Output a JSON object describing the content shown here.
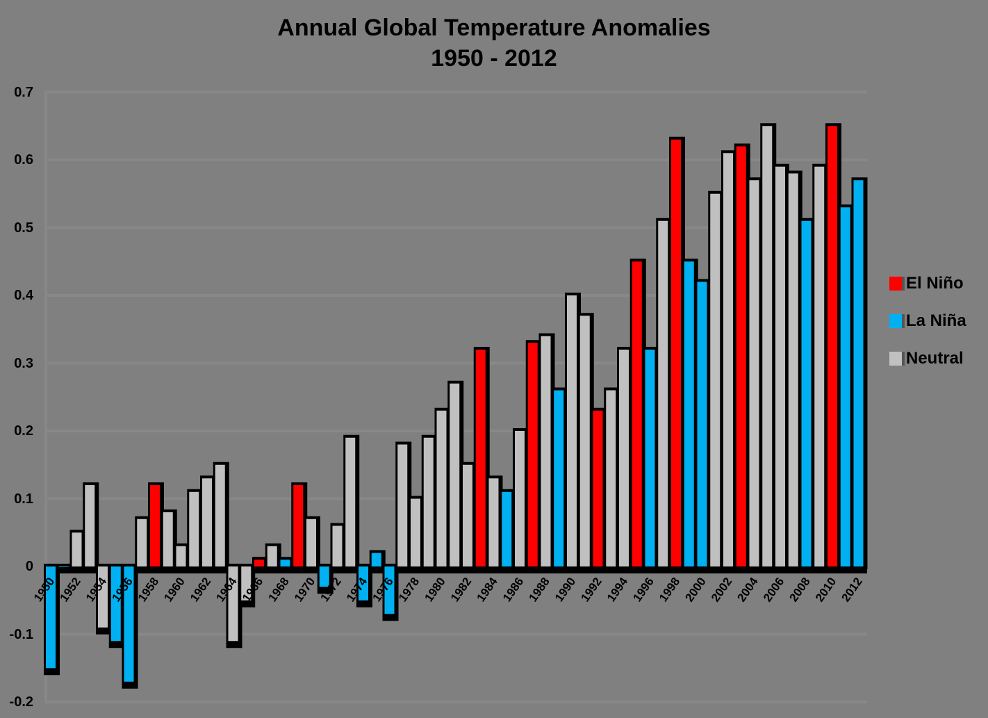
{
  "chart_data": {
    "type": "bar",
    "title": "Annual Global Temperature Anomalies",
    "subtitle": "1950 - 2012",
    "xlabel": "",
    "ylabel": "",
    "ylim": [
      -0.2,
      0.7
    ],
    "yticks": [
      "0.7",
      "0.6",
      "0.5",
      "0.4",
      "0.3",
      "0.2",
      "0.1",
      "0",
      "-0.1",
      "-0.2"
    ],
    "grid": true,
    "legend_position": "right",
    "legend": [
      {
        "name": "El Niño",
        "color": "#FF0000",
        "key": "elnino"
      },
      {
        "name": "La Niña",
        "color": "#00B0F0",
        "key": "lanina"
      },
      {
        "name": "Neutral",
        "color": "#C0C0C0",
        "key": "neutral"
      }
    ],
    "categories": [
      "1950",
      "1951",
      "1952",
      "1953",
      "1954",
      "1955",
      "1956",
      "1957",
      "1958",
      "1959",
      "1960",
      "1961",
      "1962",
      "1963",
      "1964",
      "1965",
      "1966",
      "1967",
      "1968",
      "1969",
      "1970",
      "1971",
      "1972",
      "1973",
      "1974",
      "1975",
      "1976",
      "1977",
      "1978",
      "1979",
      "1980",
      "1981",
      "1982",
      "1983",
      "1984",
      "1985",
      "1986",
      "1987",
      "1988",
      "1989",
      "1990",
      "1991",
      "1992",
      "1993",
      "1994",
      "1995",
      "1996",
      "1997",
      "1998",
      "1999",
      "2000",
      "2001",
      "2002",
      "2003",
      "2004",
      "2005",
      "2006",
      "2007",
      "2008",
      "2009",
      "2010",
      "2011",
      "2012"
    ],
    "values": [
      -0.15,
      0.0,
      0.05,
      0.12,
      -0.09,
      -0.11,
      -0.17,
      0.07,
      0.12,
      0.08,
      0.03,
      0.11,
      0.13,
      0.15,
      -0.11,
      -0.05,
      0.01,
      0.03,
      0.01,
      0.12,
      0.07,
      -0.03,
      0.06,
      0.19,
      -0.05,
      0.02,
      -0.07,
      0.18,
      0.1,
      0.19,
      0.23,
      0.27,
      0.15,
      0.32,
      0.13,
      0.11,
      0.2,
      0.33,
      0.34,
      0.26,
      0.4,
      0.37,
      0.23,
      0.26,
      0.32,
      0.45,
      0.32,
      0.51,
      0.63,
      0.45,
      0.42,
      0.55,
      0.61,
      0.62,
      0.57,
      0.65,
      0.59,
      0.58,
      0.51,
      0.59,
      0.65,
      0.53,
      0.57
    ],
    "phase": [
      "lanina",
      "lanina",
      "neutral",
      "neutral",
      "neutral",
      "lanina",
      "lanina",
      "neutral",
      "elnino",
      "neutral",
      "neutral",
      "neutral",
      "neutral",
      "neutral",
      "neutral",
      "neutral",
      "elnino",
      "neutral",
      "lanina",
      "elnino",
      "neutral",
      "lanina",
      "neutral",
      "neutral",
      "lanina",
      "lanina",
      "lanina",
      "neutral",
      "neutral",
      "neutral",
      "neutral",
      "neutral",
      "neutral",
      "elnino",
      "neutral",
      "lanina",
      "neutral",
      "elnino",
      "neutral",
      "lanina",
      "neutral",
      "neutral",
      "elnino",
      "neutral",
      "neutral",
      "elnino",
      "lanina",
      "neutral",
      "elnino",
      "lanina",
      "lanina",
      "neutral",
      "neutral",
      "elnino",
      "neutral",
      "neutral",
      "neutral",
      "neutral",
      "lanina",
      "neutral",
      "elnino",
      "lanina",
      "lanina"
    ],
    "xtick_every": 2
  }
}
